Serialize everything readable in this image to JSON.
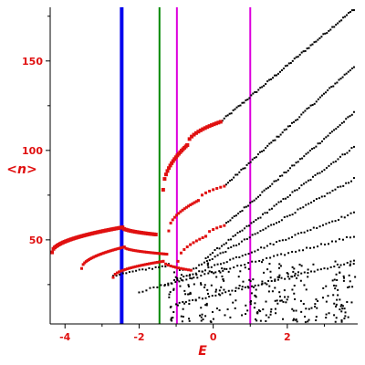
{
  "chart_data": {
    "type": "scatter",
    "title": "",
    "xlabel": "E",
    "ylabel": "<n>",
    "xlim": [
      -4.4,
      3.9
    ],
    "ylim": [
      3,
      180
    ],
    "xticks": [
      -4,
      -2,
      0,
      2
    ],
    "xtick_labels": [
      "-4",
      "-2",
      "0",
      "2"
    ],
    "yticks": [
      50,
      100,
      150
    ],
    "ytick_labels": [
      "50",
      "100",
      "150"
    ],
    "grid": false,
    "legend": "none",
    "colors": {
      "axes": "#000000",
      "labels": "#e01010",
      "red_series": "#e01010",
      "black_series": "#000000"
    },
    "vertical_lines": [
      {
        "x": -2.47,
        "color": "#0000ee"
      },
      {
        "x": -1.45,
        "color": "#008800"
      },
      {
        "x": -0.98,
        "color": "#dd00dd"
      },
      {
        "x": 1.0,
        "color": "#dd00dd"
      }
    ],
    "red_curves": [
      {
        "x_start": -4.35,
        "x_end": -2.45,
        "y_start": 43,
        "y_end": 57,
        "count": 52,
        "marker": "square"
      },
      {
        "x_start": -2.45,
        "x_end": -1.55,
        "y_start": 57,
        "y_end": 53,
        "count": 22,
        "marker": "square"
      },
      {
        "x_start": -3.55,
        "x_end": -2.4,
        "y_start": 34,
        "y_end": 46,
        "count": 30,
        "marker": "square"
      },
      {
        "x_start": -2.4,
        "x_end": -1.25,
        "y_start": 46,
        "y_end": 42,
        "count": 28,
        "marker": "square"
      },
      {
        "x_start": -2.7,
        "x_end": -1.35,
        "y_start": 29,
        "y_end": 38,
        "count": 26,
        "marker": "square"
      },
      {
        "x_start": -1.35,
        "x_end": -0.6,
        "y_start": 38,
        "y_end": 33,
        "count": 12,
        "marker": "square"
      },
      {
        "x_start": -1.35,
        "x_end": -0.7,
        "y_start": 78,
        "y_end": 103,
        "count": 18,
        "marker": "square"
      },
      {
        "x_start": -0.7,
        "x_end": 0.2,
        "y_start": 103,
        "y_end": 116,
        "count": 16,
        "marker": "square"
      },
      {
        "x_start": -1.2,
        "x_end": -0.4,
        "y_start": 55,
        "y_end": 72,
        "count": 16,
        "marker": "square"
      },
      {
        "x_start": -0.4,
        "x_end": 0.3,
        "y_start": 72,
        "y_end": 80,
        "count": 8,
        "marker": "square"
      },
      {
        "x_start": -0.95,
        "x_end": -0.2,
        "y_start": 38,
        "y_end": 52,
        "count": 10,
        "marker": "square"
      },
      {
        "x_start": -0.2,
        "x_end": 0.3,
        "y_start": 52,
        "y_end": 58,
        "count": 6,
        "marker": "square"
      }
    ],
    "black_curves": [
      {
        "x_start": 0.2,
        "x_end": 3.8,
        "y_start": 116,
        "y_end": 179,
        "count": 75
      },
      {
        "x_start": 0.3,
        "x_end": 3.8,
        "y_start": 80,
        "y_end": 147,
        "count": 70
      },
      {
        "x_start": 0.3,
        "x_end": 3.8,
        "y_start": 58,
        "y_end": 121,
        "count": 66
      },
      {
        "x_start": -0.2,
        "x_end": 3.8,
        "y_start": 40,
        "y_end": 102,
        "count": 66
      },
      {
        "x_start": -0.6,
        "x_end": 3.8,
        "y_start": 33,
        "y_end": 84,
        "count": 62
      },
      {
        "x_start": -1.3,
        "x_end": 3.8,
        "y_start": 25,
        "y_end": 65,
        "count": 62
      },
      {
        "x_start": -2.0,
        "x_end": 3.8,
        "y_start": 21,
        "y_end": 52,
        "count": 60
      },
      {
        "x_start": -2.7,
        "x_end": -1.2,
        "y_start": 30,
        "y_end": 36,
        "count": 18
      },
      {
        "x_start": -1.0,
        "x_end": 3.8,
        "y_start": 14,
        "y_end": 38,
        "count": 55
      }
    ],
    "black_cloud": {
      "x_range": [
        -1.2,
        3.85
      ],
      "y_range": [
        4,
        38
      ],
      "count": 280
    }
  }
}
